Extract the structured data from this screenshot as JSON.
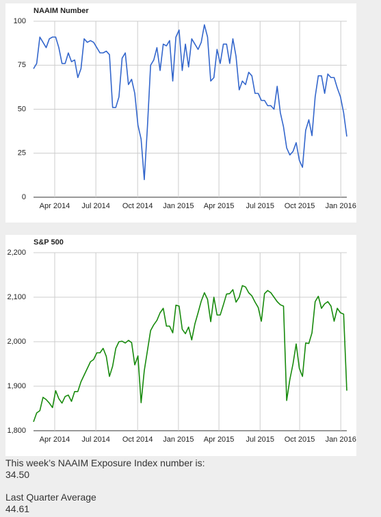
{
  "chart_data": [
    {
      "type": "line",
      "title": "NAAIM Number",
      "x": [
        0,
        1,
        2,
        3,
        4,
        5,
        6,
        7,
        8,
        9,
        10,
        11,
        12,
        13,
        14,
        15,
        16,
        17,
        18,
        19,
        20,
        21,
        22,
        23,
        24,
        25,
        26,
        27,
        28,
        29,
        30,
        31,
        32,
        33,
        34,
        35,
        36,
        37,
        38,
        39,
        40,
        41,
        42,
        43,
        44,
        45,
        46,
        47,
        48,
        49,
        50,
        51,
        52,
        53,
        54,
        55,
        56,
        57,
        58,
        59,
        60,
        61,
        62,
        63,
        64,
        65,
        66,
        67,
        68,
        69,
        70,
        71,
        72,
        73,
        74,
        75,
        76,
        77,
        78,
        79,
        80,
        81,
        82,
        83,
        84,
        85,
        86,
        87,
        88,
        89,
        90,
        91,
        92,
        93,
        94,
        95,
        96,
        97,
        98,
        99
      ],
      "series": [
        {
          "name": "NAAIM Number",
          "color": "#3366cc",
          "values": [
            73,
            76,
            91,
            88,
            85,
            90,
            91,
            91,
            85,
            76,
            76,
            82,
            77,
            78,
            68,
            73,
            90,
            88,
            89,
            88,
            85,
            82,
            82,
            83,
            81,
            51,
            51,
            57,
            79,
            82,
            64,
            67,
            59,
            41,
            33,
            10,
            40,
            75,
            78,
            85,
            72,
            87,
            86,
            89,
            66,
            91,
            95,
            72,
            87,
            74,
            90,
            87,
            84,
            88,
            98,
            91,
            66,
            68,
            84,
            76,
            87,
            87,
            76,
            90,
            80,
            61,
            66,
            64,
            71,
            69,
            59,
            59,
            55,
            55,
            52,
            52,
            50,
            63,
            48,
            40,
            28,
            24,
            26,
            31,
            21,
            17,
            38,
            44,
            35,
            57,
            69,
            69,
            59,
            70,
            68,
            68,
            62,
            57,
            48,
            34.5
          ]
        }
      ],
      "xlim": [
        0,
        99
      ],
      "xticks": [
        {
          "value": 6.7,
          "label": "Apr 2014"
        },
        {
          "value": 19.7,
          "label": "Jul 2014"
        },
        {
          "value": 32.9,
          "label": "Oct 2014"
        },
        {
          "value": 45.8,
          "label": "Jan 2015"
        },
        {
          "value": 58.6,
          "label": "Apr 2015"
        },
        {
          "value": 71.6,
          "label": "Jul 2015"
        },
        {
          "value": 84.1,
          "label": "Oct 2015"
        },
        {
          "value": 97.1,
          "label": "Jan 2016"
        }
      ],
      "ylim": [
        0,
        100
      ],
      "yticks": [
        0,
        25,
        50,
        75,
        100
      ],
      "grid": true
    },
    {
      "type": "line",
      "title": "S&P 500",
      "x": [
        0,
        1,
        2,
        3,
        4,
        5,
        6,
        7,
        8,
        9,
        10,
        11,
        12,
        13,
        14,
        15,
        16,
        17,
        18,
        19,
        20,
        21,
        22,
        23,
        24,
        25,
        26,
        27,
        28,
        29,
        30,
        31,
        32,
        33,
        34,
        35,
        36,
        37,
        38,
        39,
        40,
        41,
        42,
        43,
        44,
        45,
        46,
        47,
        48,
        49,
        50,
        51,
        52,
        53,
        54,
        55,
        56,
        57,
        58,
        59,
        60,
        61,
        62,
        63,
        64,
        65,
        66,
        67,
        68,
        69,
        70,
        71,
        72,
        73,
        74,
        75,
        76,
        77,
        78,
        79,
        80,
        81,
        82,
        83,
        84,
        85,
        86,
        87,
        88,
        89,
        90,
        91,
        92,
        93,
        94,
        95,
        96,
        97,
        98,
        99
      ],
      "series": [
        {
          "name": "S&P 500",
          "color": "#178a0c",
          "values": [
            1820,
            1840,
            1845,
            1875,
            1870,
            1862,
            1852,
            1890,
            1872,
            1862,
            1877,
            1880,
            1866,
            1888,
            1888,
            1910,
            1925,
            1940,
            1955,
            1960,
            1975,
            1975,
            1985,
            1967,
            1922,
            1945,
            1985,
            2000,
            2001,
            1997,
            2003,
            1998,
            1948,
            1968,
            1863,
            1935,
            1980,
            2025,
            2038,
            2048,
            2065,
            2075,
            2035,
            2035,
            2020,
            2082,
            2080,
            2028,
            2018,
            2033,
            2004,
            2040,
            2065,
            2091,
            2110,
            2095,
            2045,
            2100,
            2060,
            2060,
            2083,
            2107,
            2108,
            2117,
            2089,
            2100,
            2126,
            2123,
            2110,
            2103,
            2089,
            2077,
            2046,
            2108,
            2115,
            2110,
            2100,
            2090,
            2083,
            2080,
            1868,
            1915,
            1950,
            1995,
            1940,
            1922,
            1997,
            1996,
            2020,
            2090,
            2102,
            2075,
            2085,
            2090,
            2080,
            2046,
            2075,
            2065,
            2062,
            1890
          ]
        }
      ],
      "xlim": [
        0,
        99
      ],
      "xticks": [
        {
          "value": 6.7,
          "label": "Apr 2014"
        },
        {
          "value": 19.7,
          "label": "Jul 2014"
        },
        {
          "value": 32.9,
          "label": "Oct 2014"
        },
        {
          "value": 45.8,
          "label": "Jan 2015"
        },
        {
          "value": 58.6,
          "label": "Apr 2015"
        },
        {
          "value": 71.6,
          "label": "Jul 2015"
        },
        {
          "value": 84.1,
          "label": "Oct 2015"
        },
        {
          "value": 97.1,
          "label": "Jan 2016"
        }
      ],
      "ylim": [
        1800,
        2200
      ],
      "yticks": [
        {
          "value": 1800,
          "label": "1,800"
        },
        {
          "value": 1900,
          "label": "1,900"
        },
        {
          "value": 2000,
          "label": "2,000"
        },
        {
          "value": 2100,
          "label": "2,100"
        },
        {
          "value": 2200,
          "label": "2,200"
        }
      ],
      "grid": true
    }
  ],
  "summary": {
    "current_label": "This week’s NAAIM Exposure Index number is:",
    "current_value": "34.50",
    "quarter_label": "Last Quarter Average",
    "quarter_value": "44.61"
  }
}
